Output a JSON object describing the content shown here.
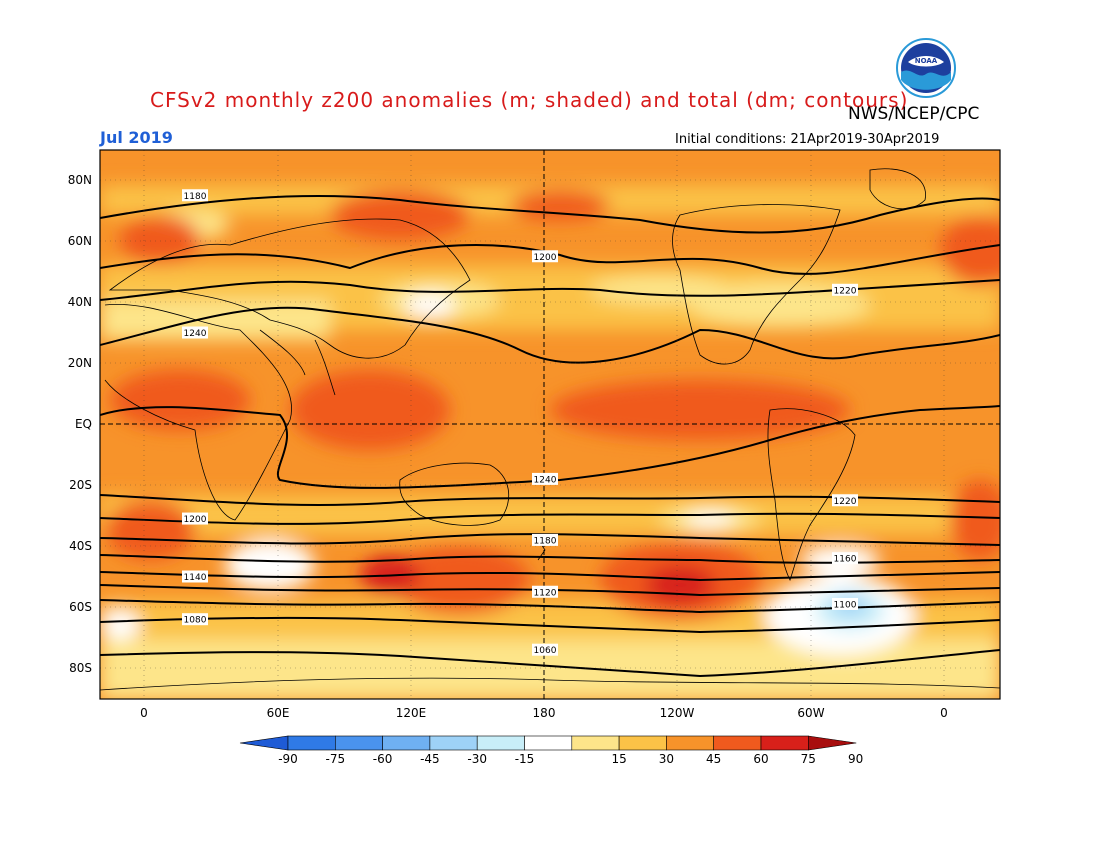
{
  "header": {
    "title": "CFSv2 monthly z200 anomalies (m; shaded) and total (dm; contours)",
    "agency": "NWS/NCEP/CPC",
    "valid": "Jul 2019",
    "initial": "Initial conditions: 21Apr2019-30Apr2019",
    "logo_text": "NOAA"
  },
  "axes": {
    "lat_labels": [
      "80N",
      "60N",
      "40N",
      "20N",
      "EQ",
      "20S",
      "40S",
      "60S",
      "80S"
    ],
    "lon_labels": [
      "0",
      "60E",
      "120E",
      "180",
      "120W",
      "60W",
      "0"
    ]
  },
  "colorbar": {
    "labels": [
      "-90",
      "-75",
      "-60",
      "-45",
      "-30",
      "-15",
      "15",
      "30",
      "45",
      "60",
      "75",
      "90"
    ],
    "colors": [
      "#1e5bd6",
      "#2f7ae6",
      "#4a93ee",
      "#6fb0f2",
      "#9ed2f7",
      "#c8eef8",
      "#ffffff",
      "#fde58a",
      "#fbc247",
      "#f7932a",
      "#f05a1e",
      "#d8201a",
      "#a80e0e"
    ]
  },
  "contours": [
    {
      "label": "1180",
      "lat": 75
    },
    {
      "label": "1200",
      "lat": 55
    },
    {
      "label": "1220",
      "lat": 44
    },
    {
      "label": "1240",
      "lat": 30
    },
    {
      "label": "1240",
      "lat": -18
    },
    {
      "label": "1220",
      "lat": -25
    },
    {
      "label": "1200",
      "lat": -31
    },
    {
      "label": "1180",
      "lat": -38
    },
    {
      "label": "1160",
      "lat": -44
    },
    {
      "label": "1140",
      "lat": -50
    },
    {
      "label": "1120",
      "lat": -55
    },
    {
      "label": "1100",
      "lat": -59
    },
    {
      "label": "1080",
      "lat": -64
    },
    {
      "label": "1060",
      "lat": -74
    }
  ]
}
